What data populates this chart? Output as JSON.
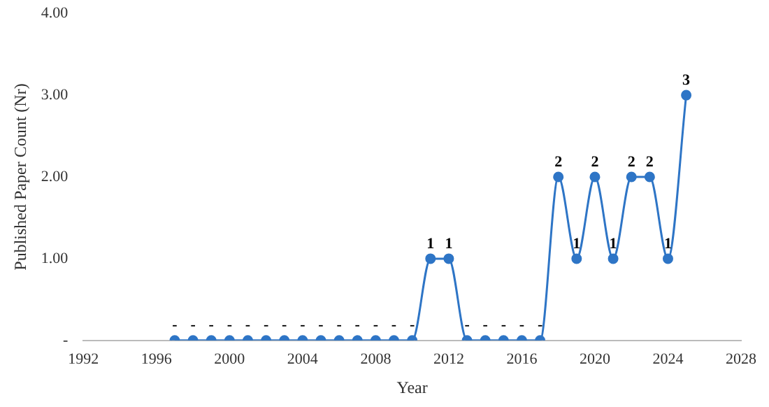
{
  "chart_data": {
    "type": "line",
    "xlabel": "Year",
    "ylabel": "Published Paper Count (Nr)",
    "x": [
      1997,
      1998,
      1999,
      2000,
      2001,
      2002,
      2003,
      2004,
      2005,
      2006,
      2007,
      2008,
      2009,
      2010,
      2011,
      2012,
      2013,
      2014,
      2015,
      2016,
      2017,
      2018,
      2019,
      2020,
      2021,
      2022,
      2023,
      2024,
      2025
    ],
    "series": [
      {
        "color": "#2e75c6",
        "values": [
          0,
          0,
          0,
          0,
          0,
          0,
          0,
          0,
          0,
          0,
          0,
          0,
          0,
          0,
          1,
          1,
          0,
          0,
          0,
          0,
          0,
          2,
          1,
          2,
          1,
          2,
          2,
          1,
          3
        ],
        "value_labels": [
          "-",
          "-",
          "-",
          "-",
          "-",
          "-",
          "-",
          "-",
          "-",
          "-",
          "-",
          "-",
          "-",
          "-",
          "1",
          "1",
          "-",
          "-",
          "-",
          "-",
          "-",
          "2",
          "1",
          "2",
          "1",
          "2",
          "2",
          "1",
          "3"
        ]
      }
    ],
    "xlim": [
      1992,
      2028
    ],
    "xticks": [
      1992,
      1996,
      2000,
      2004,
      2008,
      2012,
      2016,
      2020,
      2024,
      2028
    ],
    "ylim": [
      0,
      4
    ],
    "yticks": [
      {
        "value": 0,
        "label": "-"
      },
      {
        "value": 1,
        "label": "1.00"
      },
      {
        "value": 2,
        "label": "2.00"
      },
      {
        "value": 3,
        "label": "3.00"
      },
      {
        "value": 4,
        "label": "4.00"
      }
    ],
    "grid": false,
    "legend": false,
    "marker": "circle",
    "line_style": "solid"
  }
}
